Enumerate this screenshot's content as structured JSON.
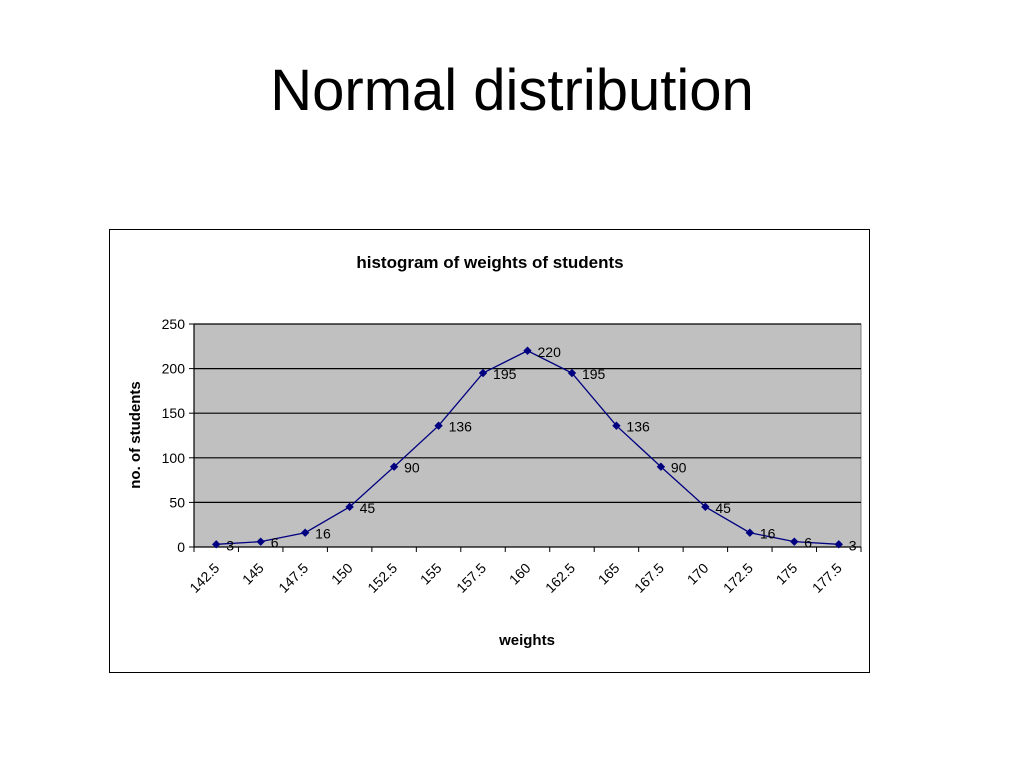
{
  "slide": {
    "title": "Normal distribution"
  },
  "chart_data": {
    "type": "line",
    "title": "histogram of weights of students",
    "xlabel": "weights",
    "ylabel": "no. of students",
    "categories": [
      "142.5",
      "145",
      "147.5",
      "150",
      "152.5",
      "155",
      "157.5",
      "160",
      "162.5",
      "165",
      "167.5",
      "170",
      "172.5",
      "175",
      "177.5"
    ],
    "series": [
      {
        "values": [
          3,
          6,
          16,
          45,
          90,
          136,
          195,
          220,
          195,
          136,
          90,
          45,
          16,
          6,
          3
        ]
      }
    ],
    "data_labels": true,
    "ylim": [
      0,
      250
    ],
    "yticks": [
      0,
      50,
      100,
      150,
      200,
      250
    ],
    "grid": "horizontal",
    "legend": "none",
    "colors": {
      "line": "#000080",
      "plot_background": "#c0c0c0",
      "gridline": "#000000"
    }
  }
}
